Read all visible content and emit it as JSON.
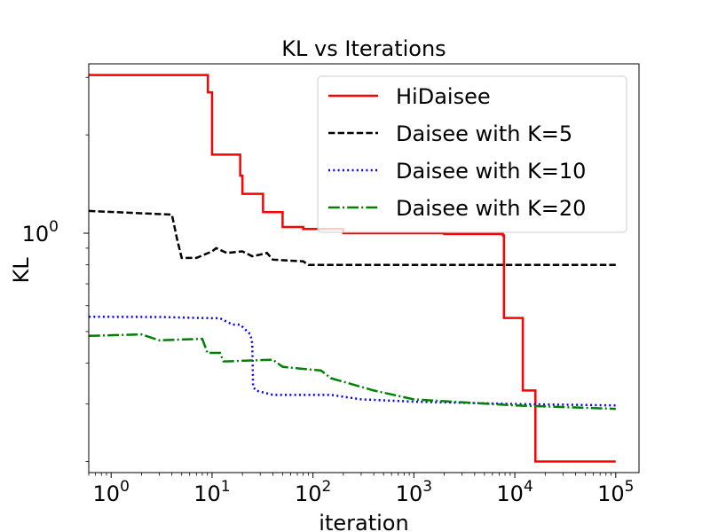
{
  "chart_data": {
    "type": "line",
    "title": "KL vs Iterations",
    "xlabel": "iteration",
    "ylabel": "KL",
    "xscale": "log",
    "yscale": "log",
    "xlim": [
      0.6,
      170000
    ],
    "ylim": [
      0.185,
      3.3
    ],
    "x_ticks": [
      {
        "base": "10",
        "exp": "0",
        "value": 1
      },
      {
        "base": "10",
        "exp": "1",
        "value": 10
      },
      {
        "base": "10",
        "exp": "2",
        "value": 100
      },
      {
        "base": "10",
        "exp": "3",
        "value": 1000
      },
      {
        "base": "10",
        "exp": "4",
        "value": 10000
      },
      {
        "base": "10",
        "exp": "5",
        "value": 100000
      }
    ],
    "y_ticks": [
      {
        "base": "10",
        "exp": "0",
        "value": 1
      }
    ],
    "y_minor_ticks": [
      0.2,
      0.3,
      0.4,
      0.5,
      0.6,
      0.7,
      0.8,
      0.9,
      2,
      3
    ],
    "legend_position": "upper right",
    "series": [
      {
        "name": "HiDaisee",
        "color": "#ff0000",
        "style": "solid",
        "x": [
          0.6,
          9.1,
          9.1,
          10,
          10,
          19,
          19,
          20,
          20,
          32,
          32,
          50,
          50,
          80,
          80,
          200,
          200,
          2000,
          2000,
          7600,
          7600,
          7800,
          7800,
          12000,
          12000,
          16000,
          16000,
          100000
        ],
        "y": [
          3.05,
          3.05,
          2.7,
          2.7,
          1.74,
          1.74,
          1.5,
          1.5,
          1.32,
          1.32,
          1.16,
          1.16,
          1.045,
          1.045,
          1.03,
          1.03,
          1.0,
          1.0,
          0.995,
          0.995,
          0.985,
          0.985,
          0.55,
          0.55,
          0.33,
          0.33,
          0.2,
          0.2
        ]
      },
      {
        "name": "Daisee with K=5",
        "color": "#000000",
        "style": "dashed",
        "x": [
          0.6,
          4,
          4.5,
          5,
          7,
          10,
          11,
          14,
          20,
          25,
          30,
          35,
          40,
          80,
          90,
          200,
          500,
          100000
        ],
        "y": [
          1.17,
          1.14,
          0.96,
          0.84,
          0.84,
          0.88,
          0.9,
          0.87,
          0.88,
          0.85,
          0.86,
          0.87,
          0.83,
          0.82,
          0.8,
          0.8,
          0.8,
          0.8
        ]
      },
      {
        "name": "Daisee with K=10",
        "color": "#0000ff",
        "style": "dotted",
        "x": [
          0.6,
          3,
          8,
          12,
          16,
          19,
          24,
          25,
          25.5,
          27,
          40,
          150,
          300,
          1000,
          10000,
          100000
        ],
        "y": [
          0.555,
          0.554,
          0.55,
          0.549,
          0.525,
          0.525,
          0.49,
          0.46,
          0.34,
          0.33,
          0.32,
          0.32,
          0.31,
          0.305,
          0.3,
          0.297
        ]
      },
      {
        "name": "Daisee with K=20",
        "color": "#008000",
        "style": "dashdot",
        "x": [
          0.6,
          2,
          3,
          8,
          9,
          12,
          13,
          40,
          50,
          75,
          120,
          150,
          400,
          1000,
          10000,
          100000
        ],
        "y": [
          0.485,
          0.49,
          0.47,
          0.475,
          0.43,
          0.43,
          0.405,
          0.41,
          0.39,
          0.385,
          0.38,
          0.36,
          0.33,
          0.31,
          0.297,
          0.29
        ]
      }
    ]
  }
}
